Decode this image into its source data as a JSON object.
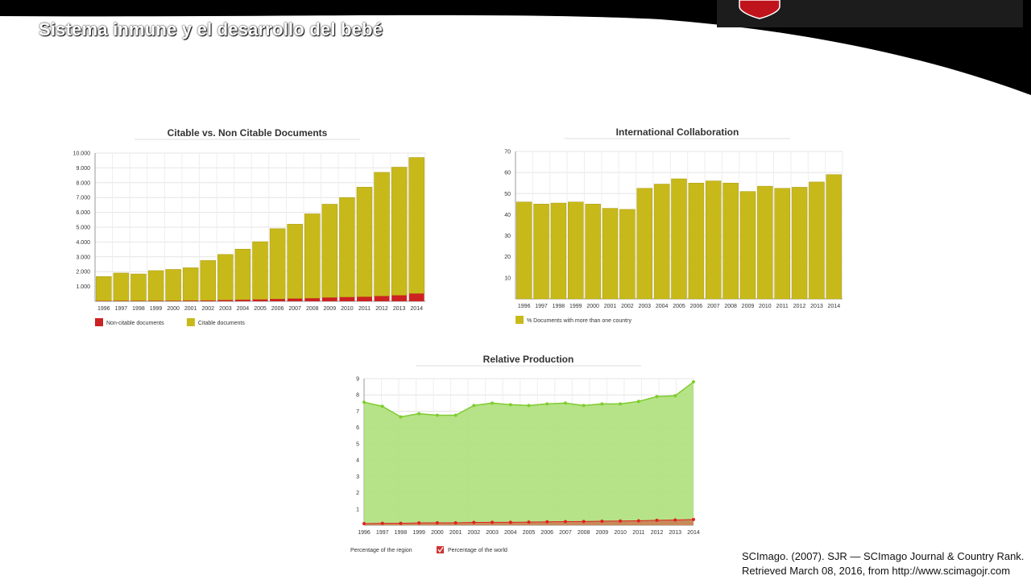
{
  "slide": {
    "title": "Sistema inmune y el desarrollo del bebé"
  },
  "colors": {
    "banner": "#000000",
    "logo_red": "#c0141c",
    "citable": "#c8b91a",
    "non_citable": "#cc2222",
    "region_fill": "#aee07a",
    "region_line": "#7fcc2e",
    "world_fill": "#c98a5a",
    "world_line": "#dd2222"
  },
  "chart_data": [
    {
      "type": "bar",
      "stacked": true,
      "title": "Citable vs. Non Citable Documents",
      "categories": [
        "1996",
        "1997",
        "1998",
        "1999",
        "2000",
        "2001",
        "2002",
        "2003",
        "2004",
        "2005",
        "2006",
        "2007",
        "2008",
        "2009",
        "2010",
        "2011",
        "2012",
        "2013",
        "2014"
      ],
      "series": [
        {
          "name": "Non-citable documents",
          "values": [
            20,
            25,
            25,
            30,
            30,
            40,
            50,
            80,
            100,
            120,
            150,
            180,
            200,
            250,
            280,
            300,
            350,
            400,
            520
          ]
        },
        {
          "name": "Citable documents",
          "values": [
            1650,
            1880,
            1820,
            2040,
            2120,
            2220,
            2700,
            3080,
            3420,
            3900,
            4750,
            5020,
            5700,
            6300,
            6720,
            7400,
            8350,
            8650,
            9180
          ]
        }
      ],
      "ylim": [
        0,
        10000
      ],
      "yticks": [
        "1.000",
        "2.000",
        "3.000",
        "4.000",
        "5.000",
        "6.000",
        "7.000",
        "8.000",
        "9.000",
        "10.000"
      ],
      "grid": true,
      "legend_position": "bottom-left"
    },
    {
      "type": "bar",
      "title": "International Collaboration",
      "categories": [
        "1996",
        "1997",
        "1998",
        "1999",
        "2000",
        "2001",
        "2002",
        "2003",
        "2004",
        "2005",
        "2006",
        "2007",
        "2008",
        "2009",
        "2010",
        "2011",
        "2012",
        "2013",
        "2014"
      ],
      "series": [
        {
          "name": "% Documents with more than one country",
          "values": [
            46,
            45,
            45.5,
            46,
            45,
            43,
            42.5,
            52.5,
            54.5,
            57,
            55,
            56,
            55,
            51,
            53.5,
            52.5,
            53,
            55.5,
            59
          ]
        }
      ],
      "ylim": [
        0,
        70
      ],
      "yticks": [
        "10",
        "20",
        "30",
        "40",
        "50",
        "60",
        "70"
      ],
      "grid": true,
      "legend_position": "bottom-left"
    },
    {
      "type": "area",
      "title": "Relative Production",
      "categories": [
        "1996",
        "1997",
        "1998",
        "1999",
        "2000",
        "2001",
        "2002",
        "2003",
        "2004",
        "2005",
        "2006",
        "2007",
        "2008",
        "2009",
        "2010",
        "2011",
        "2012",
        "2013",
        "2014"
      ],
      "series": [
        {
          "name": "Percentage of the region",
          "values": [
            7.55,
            7.3,
            6.65,
            6.85,
            6.75,
            6.75,
            7.35,
            7.5,
            7.4,
            7.35,
            7.45,
            7.5,
            7.35,
            7.45,
            7.45,
            7.6,
            7.9,
            7.95,
            8.8
          ]
        },
        {
          "name": "Percentage of the world",
          "values": [
            0.1,
            0.12,
            0.12,
            0.14,
            0.15,
            0.15,
            0.17,
            0.18,
            0.18,
            0.19,
            0.21,
            0.22,
            0.23,
            0.25,
            0.26,
            0.27,
            0.3,
            0.32,
            0.35
          ]
        }
      ],
      "ylim": [
        0,
        9
      ],
      "yticks": [
        "1",
        "2",
        "3",
        "4",
        "5",
        "6",
        "7",
        "8",
        "9"
      ],
      "grid": true,
      "legend_position": "bottom-left"
    }
  ],
  "citation": {
    "line1": "SCImago. (2007). SJR — SCImago Journal & Country Rank.",
    "line2": "Retrieved  March 08, 2016, from http://www.scimagojr.com"
  }
}
